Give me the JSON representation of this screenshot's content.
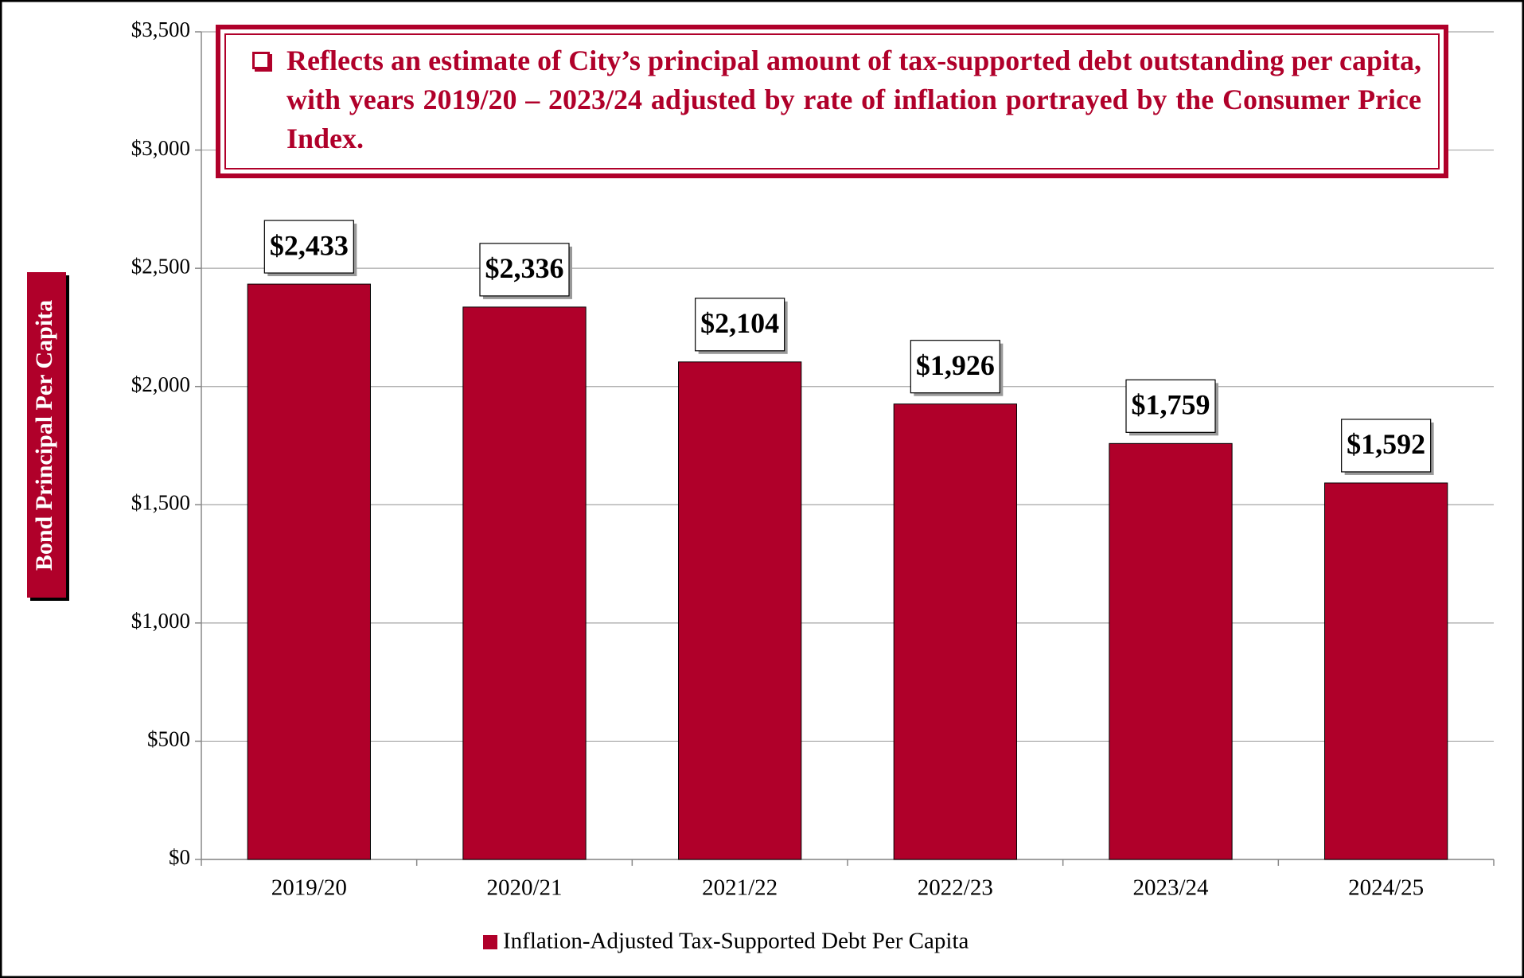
{
  "chart_data": {
    "type": "bar",
    "annotation": "Reflects an estimate of City’s principal amount of tax-supported debt outstanding per capita, with years 2019/20 – 2023/24 adjusted by rate of inflation portrayed by the Consumer Price Index.",
    "y_label": "Bond Principal Per Capita",
    "categories": [
      "2019/20",
      "2020/21",
      "2021/22",
      "2022/23",
      "2023/24",
      "2024/25"
    ],
    "series": [
      {
        "name": "Inflation-Adjusted Tax-Supported Debt Per Capita",
        "color": "#b0002a",
        "values": [
          2433,
          2336,
          2104,
          1926,
          1759,
          1592
        ],
        "value_labels": [
          "$2,433",
          "$2,336",
          "$2,104",
          "$1,926",
          "$1,759",
          "$1,592"
        ]
      }
    ],
    "ylim": [
      0,
      3500
    ],
    "yticks": [
      {
        "value": 0,
        "label": "$0"
      },
      {
        "value": 500,
        "label": "$500"
      },
      {
        "value": 1000,
        "label": "$1,000"
      },
      {
        "value": 1500,
        "label": "$1,500"
      },
      {
        "value": 2000,
        "label": "$2,000"
      },
      {
        "value": 2500,
        "label": "$2,500"
      },
      {
        "value": 3000,
        "label": "$3,000"
      },
      {
        "value": 3500,
        "label": "$3,500"
      }
    ],
    "grid": true
  }
}
